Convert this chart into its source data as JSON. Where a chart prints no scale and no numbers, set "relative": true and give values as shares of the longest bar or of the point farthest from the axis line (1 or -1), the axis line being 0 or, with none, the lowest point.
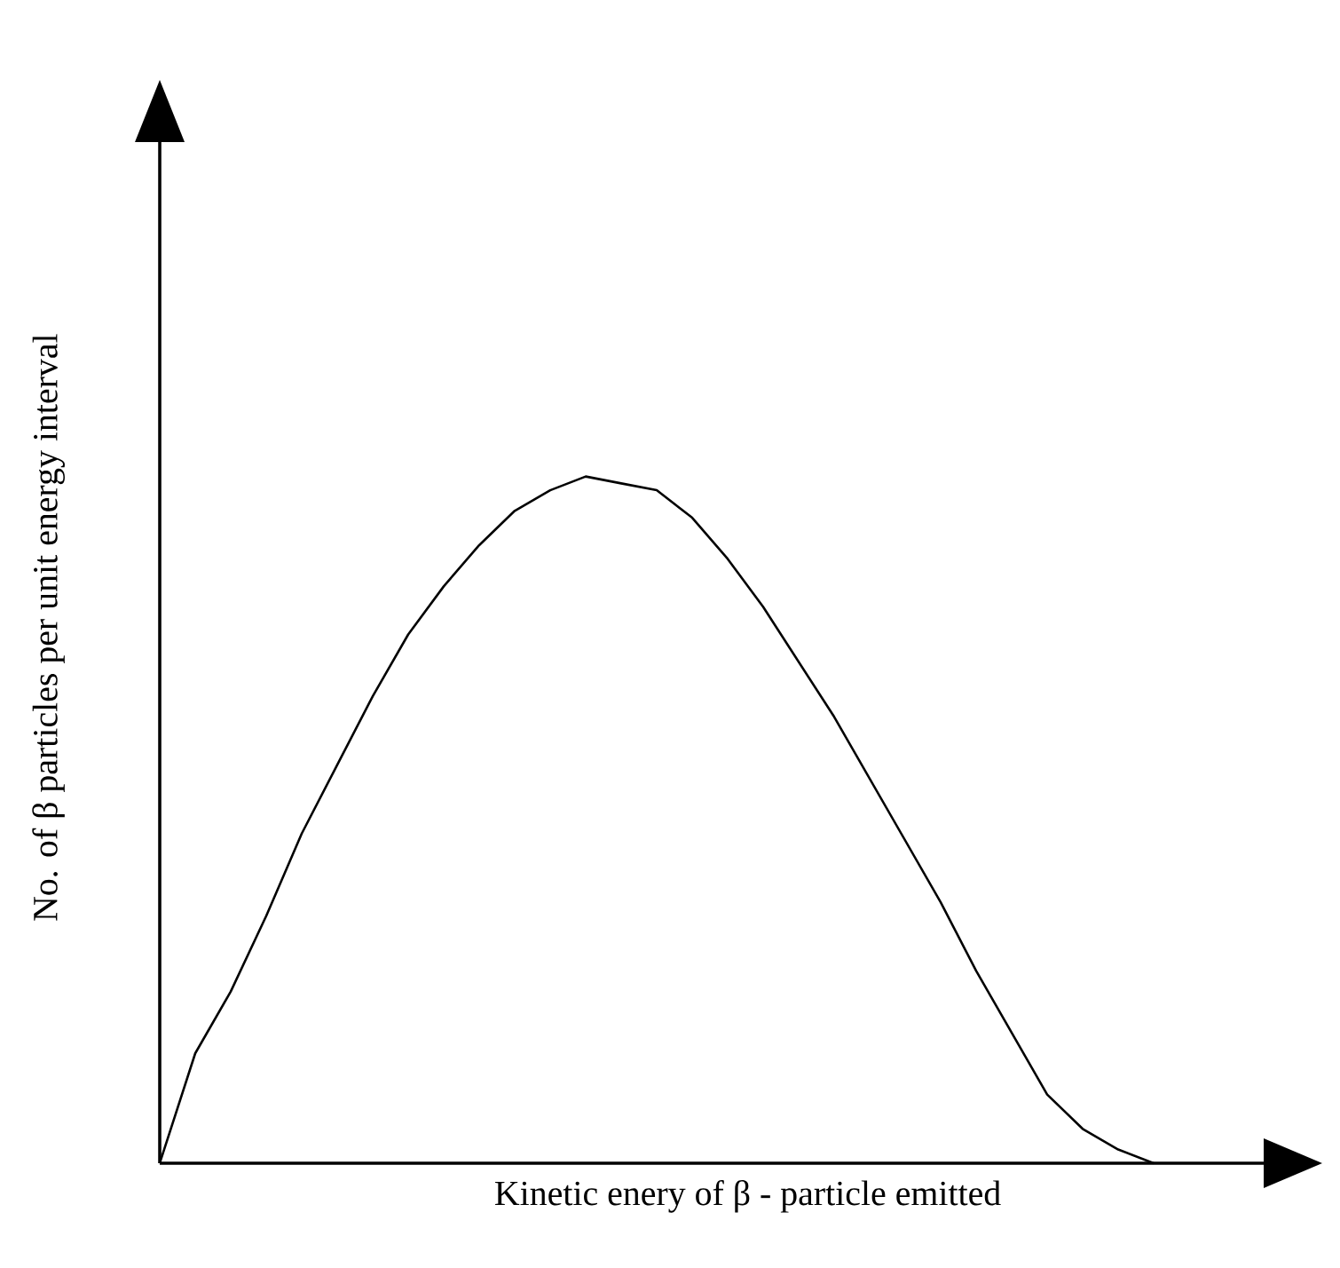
{
  "chart_data": {
    "type": "line",
    "relative": true,
    "xlabel": "Kinetic enery of  β - particle emitted",
    "ylabel": "No. of β particles  per unit energy interval",
    "color": "#000000",
    "categories": [
      null,
      null,
      null,
      null,
      null,
      null,
      null,
      null,
      null,
      null,
      null,
      null,
      null,
      null,
      null,
      null,
      null,
      null,
      null,
      null,
      null,
      null,
      null,
      null,
      null,
      null,
      null,
      null,
      null,
      null,
      null,
      null,
      null
    ],
    "values": [
      0,
      0.16,
      0.25,
      0.36,
      0.48,
      0.58,
      0.68,
      0.77,
      0.84,
      0.9,
      0.95,
      0.98,
      1,
      0.99,
      0.98,
      0.94,
      0.88,
      0.81,
      0.73,
      0.65,
      0.56,
      0.47,
      0.38,
      0.28,
      0.19,
      0.1,
      0.05,
      0.02,
      0,
      null,
      null,
      null,
      null
    ]
  }
}
